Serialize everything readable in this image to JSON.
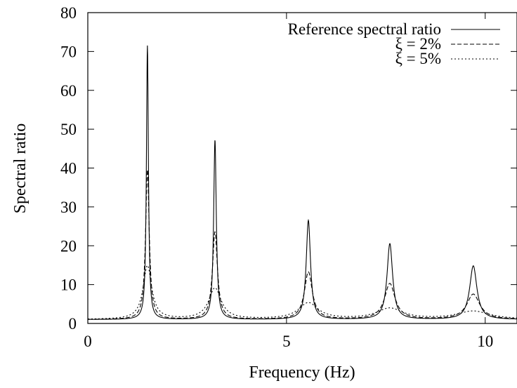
{
  "chart_data": {
    "type": "line",
    "title": "",
    "xlabel": "Frequency (Hz)",
    "ylabel": "Spectral ratio",
    "xlim": [
      0,
      10.8
    ],
    "ylim": [
      0,
      80
    ],
    "x_ticks": [
      0,
      5,
      10
    ],
    "y_ticks": [
      0,
      10,
      20,
      30,
      40,
      50,
      60,
      70,
      80
    ],
    "x_tick_labels": [
      "0",
      "5",
      "10"
    ],
    "y_tick_labels": [
      "0",
      "10",
      "20",
      "30",
      "40",
      "50",
      "60",
      "70",
      "80"
    ],
    "grid": false,
    "legend": "top-right",
    "series": [
      {
        "name": "Reference spectral ratio",
        "style": "solid",
        "color": "#000000",
        "baseline": 1.0,
        "peaks": [
          {
            "x": 1.5,
            "y": 71.5,
            "width": 0.03
          },
          {
            "x": 3.2,
            "y": 47.2,
            "width": 0.04
          },
          {
            "x": 5.55,
            "y": 26.5,
            "width": 0.065
          },
          {
            "x": 7.6,
            "y": 20.5,
            "width": 0.085
          },
          {
            "x": 9.7,
            "y": 14.8,
            "width": 0.11
          }
        ]
      },
      {
        "name": "ξ = 2%",
        "style": "dashed",
        "color": "#000000",
        "baseline": 1.0,
        "peaks": [
          {
            "x": 1.5,
            "y": 39.5,
            "width": 0.055
          },
          {
            "x": 3.2,
            "y": 23.5,
            "width": 0.075
          },
          {
            "x": 5.55,
            "y": 13.2,
            "width": 0.12
          },
          {
            "x": 7.6,
            "y": 10.2,
            "width": 0.16
          },
          {
            "x": 9.7,
            "y": 7.5,
            "width": 0.2
          }
        ]
      },
      {
        "name": "ξ = 5%",
        "style": "dotted",
        "color": "#000000",
        "baseline": 1.0,
        "peaks": [
          {
            "x": 1.5,
            "y": 14.8,
            "width": 0.13
          },
          {
            "x": 3.2,
            "y": 9.0,
            "width": 0.19
          },
          {
            "x": 5.55,
            "y": 5.2,
            "width": 0.3
          },
          {
            "x": 7.6,
            "y": 3.8,
            "width": 0.4
          },
          {
            "x": 9.7,
            "y": 3.1,
            "width": 0.5
          }
        ]
      }
    ]
  }
}
